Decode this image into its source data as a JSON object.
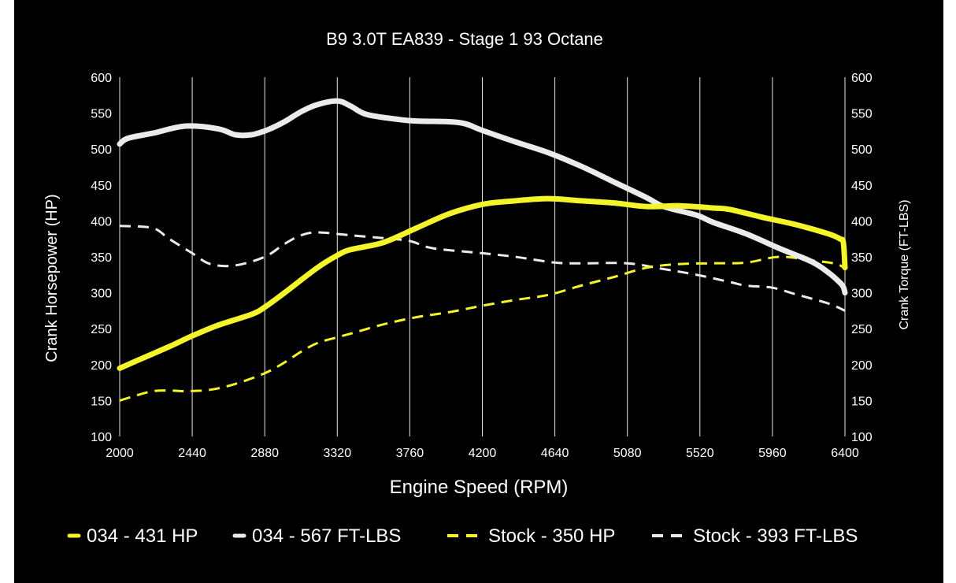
{
  "chart_data": {
    "type": "line",
    "title": "B9 3.0T EA839 - Stage 1 93 Octane",
    "xlabel": "Engine Speed (RPM)",
    "ylabel": "Crank Horsepower (HP)",
    "y2label": "Crank Torque (FT-LBS)",
    "xlim": [
      2000,
      6400
    ],
    "ylim": [
      100,
      600
    ],
    "y2lim": [
      100,
      600
    ],
    "x_ticks": [
      "2000",
      "2440",
      "2880",
      "3320",
      "3760",
      "4200",
      "4640",
      "5080",
      "5520",
      "5960",
      "6400"
    ],
    "y_ticks": [
      "100",
      "150",
      "200",
      "250",
      "300",
      "350",
      "400",
      "450",
      "500",
      "550",
      "600"
    ],
    "y2_ticks": [
      "100",
      "150",
      "200",
      "250",
      "300",
      "350",
      "400",
      "450",
      "500",
      "550",
      "600"
    ],
    "grid": {
      "vertical": true,
      "horizontal": false
    },
    "legend_position": "bottom",
    "series": [
      {
        "name": "034 - 431 HP",
        "color": "#f4f42a",
        "style": "solid",
        "points": [
          [
            2000,
            195
          ],
          [
            2100,
            205
          ],
          [
            2300,
            225
          ],
          [
            2440,
            240
          ],
          [
            2600,
            255
          ],
          [
            2800,
            270
          ],
          [
            2880,
            280
          ],
          [
            3000,
            300
          ],
          [
            3200,
            335
          ],
          [
            3320,
            352
          ],
          [
            3400,
            360
          ],
          [
            3600,
            370
          ],
          [
            3800,
            390
          ],
          [
            4000,
            410
          ],
          [
            4200,
            423
          ],
          [
            4400,
            428
          ],
          [
            4600,
            431
          ],
          [
            4800,
            428
          ],
          [
            5000,
            425
          ],
          [
            5200,
            420
          ],
          [
            5400,
            421
          ],
          [
            5600,
            418
          ],
          [
            5700,
            416
          ],
          [
            5900,
            405
          ],
          [
            6100,
            395
          ],
          [
            6300,
            382
          ],
          [
            6370,
            375
          ],
          [
            6390,
            370
          ],
          [
            6400,
            335
          ]
        ]
      },
      {
        "name": "034 - 567 FT-LBS",
        "color": "#ebebeb",
        "style": "solid",
        "points": [
          [
            2000,
            507
          ],
          [
            2050,
            515
          ],
          [
            2200,
            522
          ],
          [
            2400,
            532
          ],
          [
            2600,
            528
          ],
          [
            2700,
            520
          ],
          [
            2800,
            520
          ],
          [
            2900,
            527
          ],
          [
            3000,
            538
          ],
          [
            3100,
            552
          ],
          [
            3200,
            562
          ],
          [
            3320,
            567
          ],
          [
            3400,
            560
          ],
          [
            3500,
            548
          ],
          [
            3700,
            541
          ],
          [
            3800,
            539
          ],
          [
            4000,
            538
          ],
          [
            4100,
            535
          ],
          [
            4200,
            526
          ],
          [
            4400,
            510
          ],
          [
            4600,
            495
          ],
          [
            4800,
            476
          ],
          [
            5000,
            454
          ],
          [
            5200,
            432
          ],
          [
            5300,
            420
          ],
          [
            5500,
            408
          ],
          [
            5600,
            398
          ],
          [
            5800,
            382
          ],
          [
            6000,
            362
          ],
          [
            6200,
            343
          ],
          [
            6300,
            328
          ],
          [
            6370,
            314
          ],
          [
            6390,
            308
          ],
          [
            6400,
            300
          ]
        ]
      },
      {
        "name": "Stock - 350 HP",
        "color": "#f4f42a",
        "style": "dashed",
        "points": [
          [
            2000,
            150
          ],
          [
            2100,
            157
          ],
          [
            2200,
            163
          ],
          [
            2300,
            164
          ],
          [
            2400,
            163
          ],
          [
            2550,
            165
          ],
          [
            2700,
            173
          ],
          [
            2880,
            188
          ],
          [
            3000,
            203
          ],
          [
            3100,
            218
          ],
          [
            3200,
            230
          ],
          [
            3320,
            238
          ],
          [
            3400,
            243
          ],
          [
            3600,
            256
          ],
          [
            3800,
            266
          ],
          [
            4000,
            273
          ],
          [
            4200,
            282
          ],
          [
            4400,
            290
          ],
          [
            4600,
            297
          ],
          [
            4800,
            310
          ],
          [
            5000,
            322
          ],
          [
            5200,
            335
          ],
          [
            5400,
            340
          ],
          [
            5600,
            341
          ],
          [
            5800,
            342
          ],
          [
            6000,
            350
          ],
          [
            6200,
            345
          ],
          [
            6350,
            340
          ],
          [
            6400,
            333
          ]
        ]
      },
      {
        "name": "Stock - 393 FT-LBS",
        "color": "#ebebeb",
        "style": "dashed",
        "points": [
          [
            2000,
            393
          ],
          [
            2200,
            390
          ],
          [
            2300,
            375
          ],
          [
            2440,
            355
          ],
          [
            2550,
            340
          ],
          [
            2700,
            338
          ],
          [
            2880,
            350
          ],
          [
            3000,
            368
          ],
          [
            3100,
            380
          ],
          [
            3200,
            384
          ],
          [
            3400,
            380
          ],
          [
            3600,
            376
          ],
          [
            3760,
            372
          ],
          [
            3900,
            362
          ],
          [
            4200,
            355
          ],
          [
            4400,
            350
          ],
          [
            4640,
            342
          ],
          [
            4800,
            341
          ],
          [
            5080,
            341
          ],
          [
            5300,
            333
          ],
          [
            5500,
            325
          ],
          [
            5700,
            315
          ],
          [
            5800,
            310
          ],
          [
            5960,
            307
          ],
          [
            6100,
            298
          ],
          [
            6300,
            285
          ],
          [
            6400,
            275
          ]
        ]
      }
    ]
  }
}
